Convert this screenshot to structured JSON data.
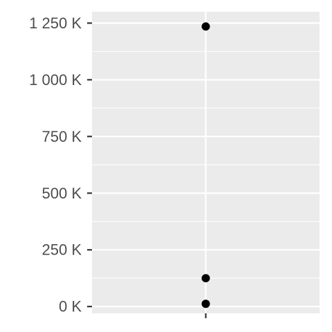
{
  "chart_data": {
    "type": "scatter",
    "title": "",
    "xlabel": "",
    "ylabel": "",
    "x_categories": [
      ""
    ],
    "ylim": [
      -30000,
      1300000
    ],
    "y_ticks": [
      0,
      250000,
      500000,
      750000,
      1000000,
      1250000
    ],
    "y_tick_labels": [
      "0 K",
      "250 K",
      "500 K",
      "750 K",
      "1 000 K",
      "1 250 K"
    ],
    "grid": true,
    "legend": "none",
    "series": [
      {
        "values": [
          1235000,
          125000,
          12000
        ]
      }
    ],
    "colors": {
      "panel": "#ebebeb",
      "grid": "#ffffff",
      "point": "#000000",
      "tick": "#333333",
      "text": "#4d4d4d"
    }
  }
}
